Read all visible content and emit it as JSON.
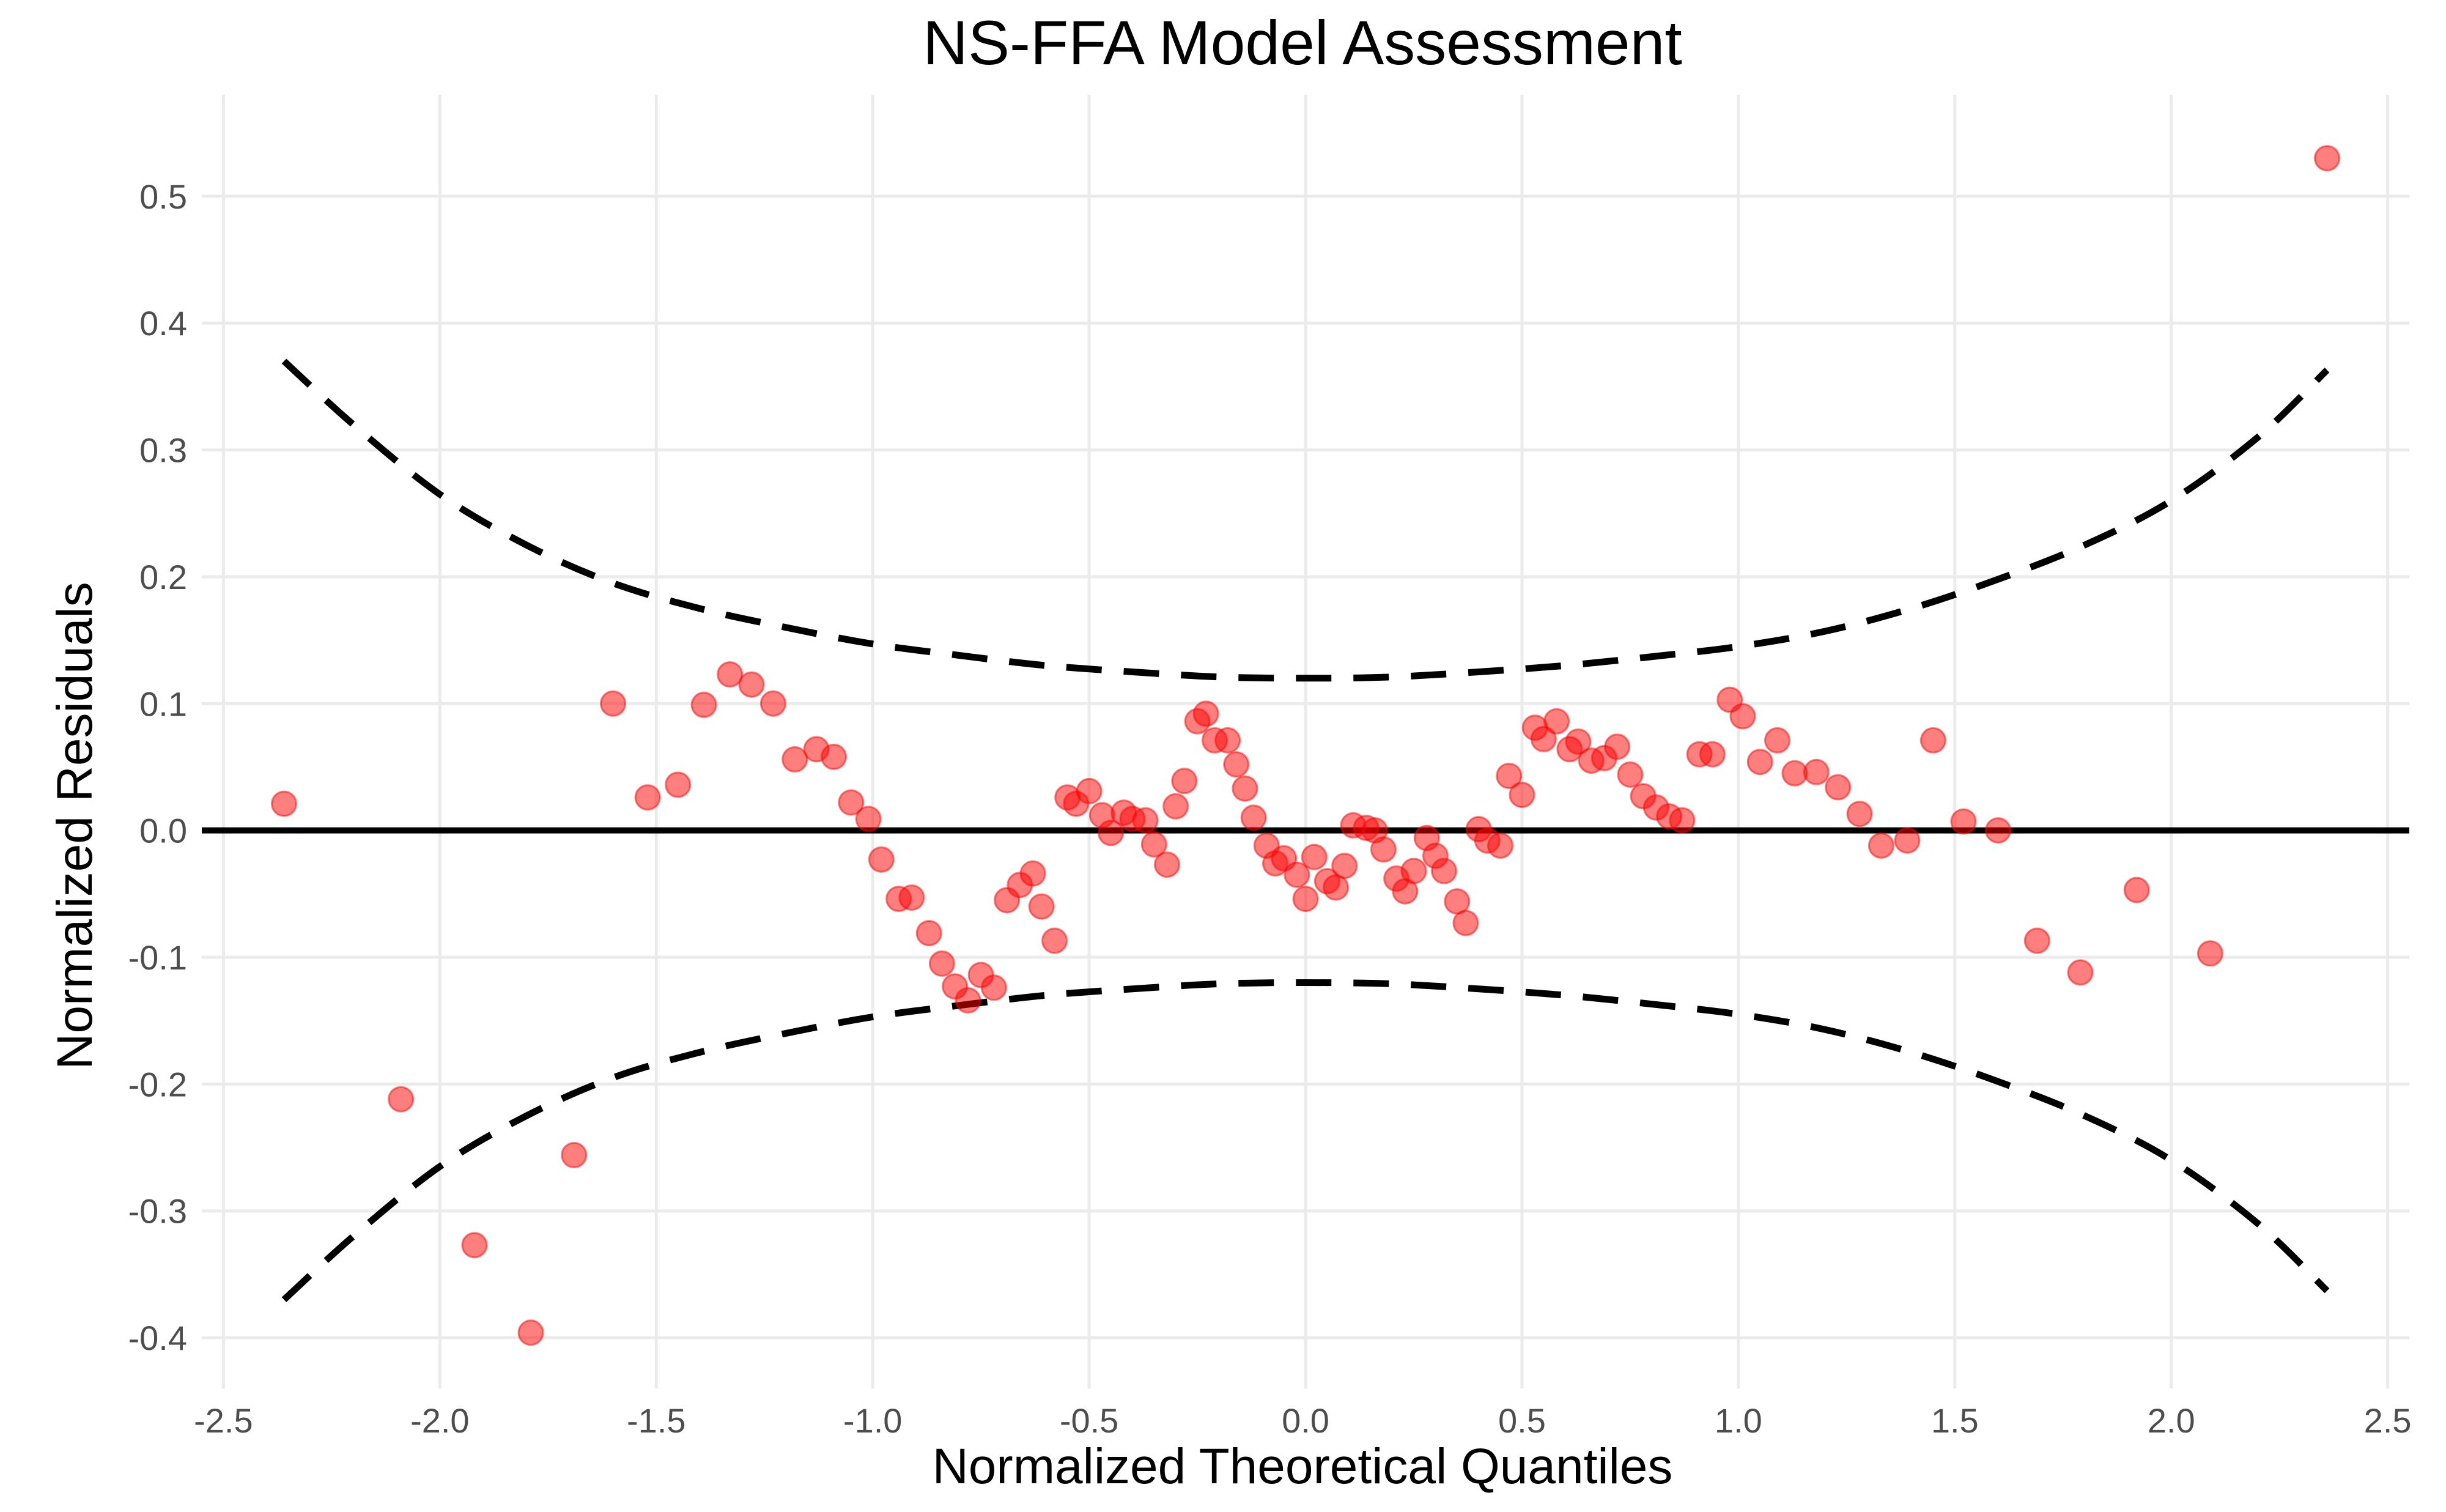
{
  "chart_data": {
    "type": "scatter",
    "title": "NS-FFA Model Assessment",
    "xlabel": "Normalized Theoretical Quantiles",
    "ylabel": "Normalized Residuals",
    "xlim": [
      -2.55,
      2.55
    ],
    "ylim": [
      -0.44,
      0.58
    ],
    "x_ticks": [
      -2.5,
      -2.0,
      -1.5,
      -1.0,
      -0.5,
      0.0,
      0.5,
      1.0,
      1.5,
      2.0,
      2.5
    ],
    "x_tick_labels": [
      "-2.5",
      "-2.0",
      "-1.5",
      "-1.0",
      "-0.5",
      "0.0",
      "0.5",
      "1.0",
      "1.5",
      "2.0",
      "2.5"
    ],
    "y_ticks": [
      -0.4,
      -0.3,
      -0.2,
      -0.1,
      0.0,
      0.1,
      0.2,
      0.3,
      0.4,
      0.5
    ],
    "y_tick_labels": [
      "-0.4",
      "-0.3",
      "-0.2",
      "-0.1",
      "0.0",
      "0.1",
      "0.2",
      "0.3",
      "0.4",
      "0.5"
    ],
    "grid": true,
    "reference_line": {
      "y": 0.0,
      "color": "#000000"
    },
    "confidence_band": {
      "style": "dashed",
      "color": "#000000",
      "x": [
        -2.36,
        -2.2,
        -2.0,
        -1.8,
        -1.6,
        -1.4,
        -1.2,
        -1.0,
        -0.8,
        -0.6,
        -0.4,
        -0.2,
        0.0,
        0.2,
        0.4,
        0.6,
        0.8,
        1.0,
        1.2,
        1.4,
        1.6,
        1.8,
        2.0,
        2.2,
        2.36
      ],
      "upper": [
        0.37,
        0.32,
        0.265,
        0.225,
        0.195,
        0.175,
        0.16,
        0.147,
        0.138,
        0.13,
        0.125,
        0.121,
        0.12,
        0.121,
        0.125,
        0.13,
        0.137,
        0.145,
        0.157,
        0.175,
        0.198,
        0.225,
        0.26,
        0.31,
        0.363
      ],
      "lower": [
        -0.37,
        -0.32,
        -0.265,
        -0.225,
        -0.195,
        -0.175,
        -0.16,
        -0.147,
        -0.138,
        -0.13,
        -0.125,
        -0.121,
        -0.12,
        -0.121,
        -0.125,
        -0.13,
        -0.137,
        -0.145,
        -0.157,
        -0.175,
        -0.198,
        -0.225,
        -0.26,
        -0.31,
        -0.363
      ]
    },
    "series": [
      {
        "color": "#ff0000",
        "points": [
          [
            -2.36,
            0.021
          ],
          [
            -2.09,
            -0.212
          ],
          [
            -1.92,
            -0.327
          ],
          [
            -1.79,
            -0.396
          ],
          [
            -1.69,
            -0.256
          ],
          [
            -1.6,
            0.1
          ],
          [
            -1.52,
            0.026
          ],
          [
            -1.45,
            0.036
          ],
          [
            -1.39,
            0.099
          ],
          [
            -1.33,
            0.123
          ],
          [
            -1.28,
            0.115
          ],
          [
            -1.23,
            0.1
          ],
          [
            -1.18,
            0.056
          ],
          [
            -1.13,
            0.064
          ],
          [
            -1.09,
            0.058
          ],
          [
            -1.05,
            0.022
          ],
          [
            -1.01,
            0.009
          ],
          [
            -0.98,
            -0.023
          ],
          [
            -0.94,
            -0.054
          ],
          [
            -0.91,
            -0.053
          ],
          [
            -0.87,
            -0.081
          ],
          [
            -0.84,
            -0.105
          ],
          [
            -0.81,
            -0.123
          ],
          [
            -0.78,
            -0.134
          ],
          [
            -0.75,
            -0.114
          ],
          [
            -0.72,
            -0.124
          ],
          [
            -0.69,
            -0.055
          ],
          [
            -0.66,
            -0.043
          ],
          [
            -0.63,
            -0.034
          ],
          [
            -0.61,
            -0.06
          ],
          [
            -0.58,
            -0.087
          ],
          [
            -0.55,
            0.026
          ],
          [
            -0.53,
            0.021
          ],
          [
            -0.5,
            0.031
          ],
          [
            -0.47,
            0.012
          ],
          [
            -0.45,
            -0.002
          ],
          [
            -0.42,
            0.014
          ],
          [
            -0.4,
            0.009
          ],
          [
            -0.37,
            0.008
          ],
          [
            -0.35,
            -0.011
          ],
          [
            -0.32,
            -0.027
          ],
          [
            -0.3,
            0.019
          ],
          [
            -0.28,
            0.039
          ],
          [
            -0.25,
            0.086
          ],
          [
            -0.23,
            0.092
          ],
          [
            -0.21,
            0.071
          ],
          [
            -0.18,
            0.071
          ],
          [
            -0.16,
            0.052
          ],
          [
            -0.14,
            0.033
          ],
          [
            -0.12,
            0.01
          ],
          [
            -0.09,
            -0.012
          ],
          [
            -0.07,
            -0.026
          ],
          [
            -0.05,
            -0.022
          ],
          [
            -0.02,
            -0.035
          ],
          [
            0.0,
            -0.054
          ],
          [
            0.02,
            -0.021
          ],
          [
            0.05,
            -0.04
          ],
          [
            0.07,
            -0.045
          ],
          [
            0.09,
            -0.028
          ],
          [
            0.11,
            0.004
          ],
          [
            0.14,
            0.002
          ],
          [
            0.16,
            0.0
          ],
          [
            0.18,
            -0.015
          ],
          [
            0.21,
            -0.038
          ],
          [
            0.23,
            -0.048
          ],
          [
            0.25,
            -0.032
          ],
          [
            0.28,
            -0.006
          ],
          [
            0.3,
            -0.02
          ],
          [
            0.32,
            -0.032
          ],
          [
            0.35,
            -0.056
          ],
          [
            0.37,
            -0.073
          ],
          [
            0.4,
            0.001
          ],
          [
            0.42,
            -0.008
          ],
          [
            0.45,
            -0.012
          ],
          [
            0.47,
            0.043
          ],
          [
            0.5,
            0.028
          ],
          [
            0.53,
            0.081
          ],
          [
            0.55,
            0.072
          ],
          [
            0.58,
            0.086
          ],
          [
            0.61,
            0.064
          ],
          [
            0.63,
            0.07
          ],
          [
            0.66,
            0.055
          ],
          [
            0.69,
            0.057
          ],
          [
            0.72,
            0.066
          ],
          [
            0.75,
            0.044
          ],
          [
            0.78,
            0.027
          ],
          [
            0.81,
            0.018
          ],
          [
            0.84,
            0.011
          ],
          [
            0.87,
            0.008
          ],
          [
            0.91,
            0.06
          ],
          [
            0.94,
            0.06
          ],
          [
            0.98,
            0.103
          ],
          [
            1.01,
            0.09
          ],
          [
            1.05,
            0.054
          ],
          [
            1.09,
            0.071
          ],
          [
            1.13,
            0.045
          ],
          [
            1.18,
            0.046
          ],
          [
            1.23,
            0.034
          ],
          [
            1.28,
            0.013
          ],
          [
            1.33,
            -0.012
          ],
          [
            1.39,
            -0.008
          ],
          [
            1.45,
            0.071
          ],
          [
            1.52,
            0.007
          ],
          [
            1.6,
            0.0
          ],
          [
            1.69,
            -0.087
          ],
          [
            1.79,
            -0.112
          ],
          [
            1.92,
            -0.047
          ],
          [
            2.09,
            -0.097
          ],
          [
            2.36,
            0.53
          ]
        ]
      }
    ]
  }
}
